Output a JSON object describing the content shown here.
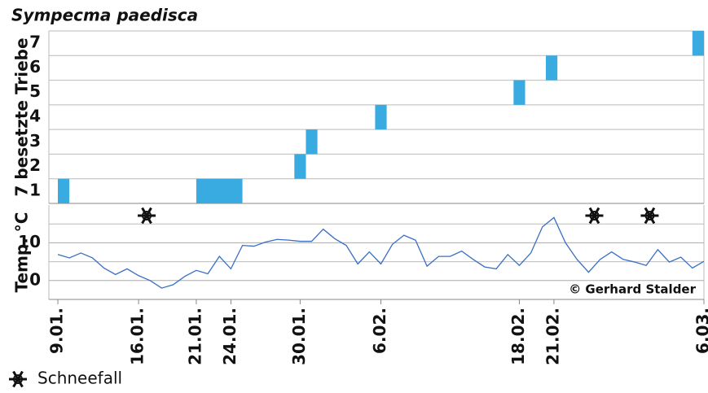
{
  "chart_data": [
    {
      "type": "range_bar",
      "title": "Sympecma paedisca",
      "ylabel": "7 besetzte Triebe",
      "color": "#3aabe0",
      "xlim": [
        0,
        56
      ],
      "ylim": [
        0.5,
        7.5
      ],
      "yticks": [
        1,
        2,
        3,
        4,
        5,
        6,
        7
      ],
      "bars": [
        {
          "level": 1,
          "start": 0,
          "end": 1
        },
        {
          "level": 1,
          "start": 12,
          "end": 16
        },
        {
          "level": 2,
          "start": 20.5,
          "end": 21.5
        },
        {
          "level": 3,
          "start": 21.5,
          "end": 22.5
        },
        {
          "level": 4,
          "start": 27.5,
          "end": 28.5
        },
        {
          "level": 5,
          "start": 39.5,
          "end": 40.5
        },
        {
          "level": 6,
          "start": 42.3,
          "end": 43.3
        },
        {
          "level": 7,
          "start": 55,
          "end": 56
        }
      ]
    },
    {
      "type": "line",
      "ylabel": "Temp. °C",
      "annotation": "© Gerhard Stalder",
      "xlim": [
        0,
        56
      ],
      "xticks": [
        {
          "value": 0,
          "label": "9.01."
        },
        {
          "value": 7,
          "label": "16.01."
        },
        {
          "value": 12,
          "label": "21.01."
        },
        {
          "value": 15,
          "label": "24.01."
        },
        {
          "value": 21,
          "label": "30.01."
        },
        {
          "value": 28,
          "label": "6.02."
        },
        {
          "value": 40,
          "label": "18.02."
        },
        {
          "value": 43,
          "label": "21.02."
        },
        {
          "value": 56,
          "label": "6.03."
        }
      ],
      "ylim": [
        -5,
        20
      ],
      "yticks": [
        0,
        10
      ],
      "minor_gridlines": [
        5,
        15
      ],
      "x": [
        0,
        1,
        2,
        3,
        4,
        5,
        6,
        7,
        8,
        9,
        10,
        11,
        12,
        13,
        14,
        15,
        16,
        17,
        18,
        19,
        20,
        21,
        22,
        23,
        24,
        25,
        26,
        27,
        28,
        29,
        30,
        31,
        32,
        33,
        34,
        35,
        36,
        37,
        38,
        39,
        40,
        41,
        42,
        43,
        44,
        45,
        46,
        47,
        48,
        49,
        50,
        51,
        52,
        53,
        54,
        55,
        56
      ],
      "series": [
        {
          "color": "#3a6fc4",
          "values": [
            6.9,
            6,
            7.3,
            6,
            3.3,
            1.6,
            3.1,
            1.3,
            0,
            -2,
            -1.1,
            1.1,
            2.7,
            1.8,
            6.4,
            3.1,
            9.3,
            9.1,
            10.2,
            10.9,
            10.7,
            10.4,
            10.4,
            13.6,
            11.1,
            9.3,
            4.4,
            7.6,
            4.4,
            9.6,
            12,
            10.7,
            3.8,
            6.4,
            6.4,
            7.8,
            5.6,
            3.6,
            3.1,
            6.9,
            4,
            7.3,
            14.2,
            16.7,
            10,
            5.6,
            2.2,
            5.6,
            7.6,
            5.6,
            4.9,
            4,
            8.2,
            4.9,
            6.2,
            3.3,
            5.1
          ]
        }
      ],
      "snowfall": {
        "label": "Schneefall",
        "x": [
          7.7,
          46.5,
          51.3
        ]
      }
    }
  ]
}
